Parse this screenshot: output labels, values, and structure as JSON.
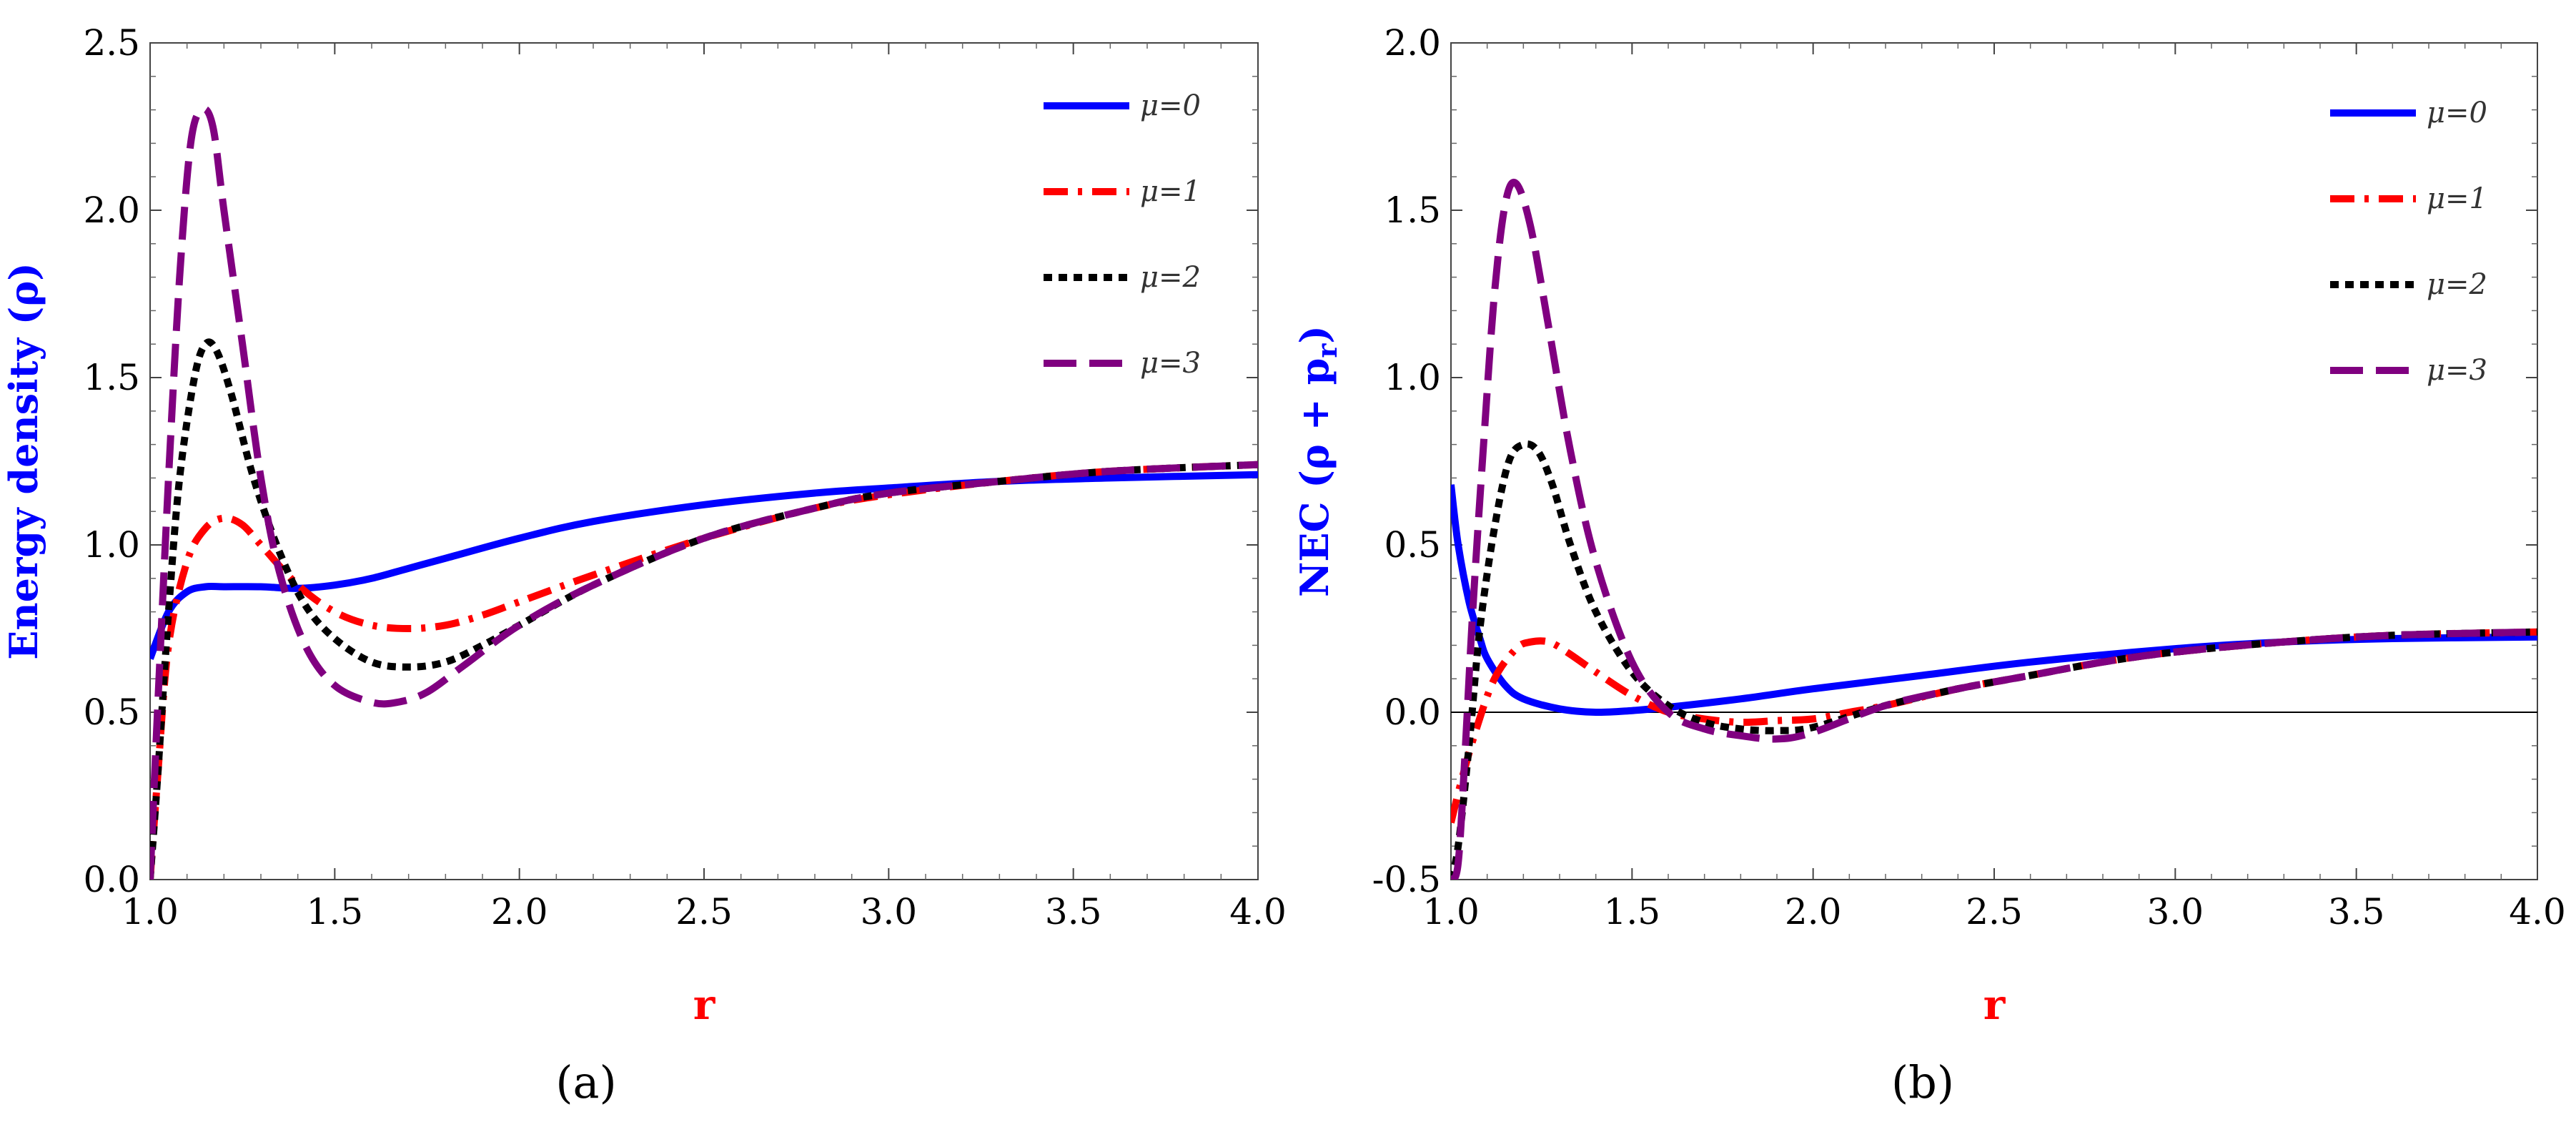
{
  "chart_data": [
    {
      "type": "line",
      "panel_label": "(a)",
      "xlabel": "r",
      "ylabel": "Energy density (ρ)",
      "xlim": [
        1.0,
        4.0
      ],
      "ylim": [
        0.0,
        2.5
      ],
      "x_ticks": [
        "1.0",
        "1.5",
        "2.0",
        "2.5",
        "3.0",
        "3.5",
        "4.0"
      ],
      "y_ticks": [
        "0.0",
        "0.5",
        "1.0",
        "1.5",
        "2.0",
        "2.5"
      ],
      "zero_line": false,
      "legend_position": "top-right",
      "series": [
        {
          "name": "μ=0",
          "color": "#0000ff",
          "style": "solid",
          "x": [
            1.0,
            1.05,
            1.1,
            1.15,
            1.2,
            1.3,
            1.4,
            1.5,
            1.6,
            1.7,
            1.8,
            2.0,
            2.2,
            2.5,
            2.8,
            3.0,
            3.3,
            3.6,
            4.0
          ],
          "y": [
            0.66,
            0.8,
            0.86,
            0.875,
            0.875,
            0.875,
            0.87,
            0.88,
            0.9,
            0.93,
            0.96,
            1.02,
            1.07,
            1.12,
            1.155,
            1.17,
            1.19,
            1.2,
            1.21
          ]
        },
        {
          "name": "μ=1",
          "color": "#ff0000",
          "style": "dashdot",
          "x": [
            1.0,
            1.02,
            1.05,
            1.1,
            1.15,
            1.2,
            1.25,
            1.3,
            1.4,
            1.5,
            1.6,
            1.7,
            1.8,
            1.9,
            2.0,
            2.2,
            2.5,
            2.8,
            3.0,
            3.3,
            3.6,
            4.0
          ],
          "y": [
            0.0,
            0.3,
            0.7,
            0.95,
            1.05,
            1.08,
            1.06,
            1.0,
            0.88,
            0.8,
            0.76,
            0.75,
            0.76,
            0.79,
            0.83,
            0.91,
            1.02,
            1.11,
            1.15,
            1.19,
            1.22,
            1.24
          ]
        },
        {
          "name": "μ=2",
          "color": "#000000",
          "style": "dotted",
          "x": [
            1.0,
            1.02,
            1.05,
            1.08,
            1.12,
            1.15,
            1.18,
            1.22,
            1.28,
            1.35,
            1.42,
            1.5,
            1.6,
            1.7,
            1.8,
            1.9,
            2.0,
            2.2,
            2.5,
            2.8,
            3.0,
            3.3,
            3.6,
            4.0
          ],
          "y": [
            0.0,
            0.3,
            0.8,
            1.2,
            1.5,
            1.6,
            1.58,
            1.45,
            1.2,
            0.98,
            0.82,
            0.72,
            0.65,
            0.635,
            0.65,
            0.7,
            0.76,
            0.88,
            1.02,
            1.11,
            1.155,
            1.19,
            1.22,
            1.24
          ]
        },
        {
          "name": "μ=3",
          "color": "#800080",
          "style": "dashed",
          "x": [
            1.0,
            1.02,
            1.05,
            1.08,
            1.11,
            1.14,
            1.17,
            1.2,
            1.25,
            1.3,
            1.35,
            1.42,
            1.5,
            1.6,
            1.67,
            1.75,
            1.85,
            2.0,
            2.2,
            2.5,
            2.8,
            3.0,
            3.3,
            3.6,
            4.0
          ],
          "y": [
            0.0,
            0.5,
            1.2,
            1.8,
            2.2,
            2.3,
            2.25,
            2.0,
            1.6,
            1.2,
            0.92,
            0.7,
            0.58,
            0.53,
            0.53,
            0.56,
            0.64,
            0.76,
            0.88,
            1.02,
            1.11,
            1.155,
            1.19,
            1.22,
            1.24
          ]
        }
      ]
    },
    {
      "type": "line",
      "panel_label": "(b)",
      "xlabel": "r",
      "ylabel": "NEC (ρ + p",
      "ylabel_sub": "r",
      "ylabel_close": ")",
      "xlim": [
        1.0,
        4.0
      ],
      "ylim": [
        -0.5,
        2.0
      ],
      "x_ticks": [
        "1.0",
        "1.5",
        "2.0",
        "2.5",
        "3.0",
        "3.5",
        "4.0"
      ],
      "y_ticks": [
        "-0.5",
        "0.0",
        "0.5",
        "1.0",
        "1.5",
        "2.0"
      ],
      "zero_line": true,
      "legend_position": "top-right",
      "series": [
        {
          "name": "μ=0",
          "color": "#0000ff",
          "style": "solid",
          "x": [
            1.0,
            1.02,
            1.05,
            1.08,
            1.1,
            1.15,
            1.2,
            1.3,
            1.4,
            1.5,
            1.6,
            1.8,
            2.0,
            2.3,
            2.6,
            3.0,
            3.3,
            3.6,
            4.0
          ],
          "y": [
            0.68,
            0.5,
            0.33,
            0.22,
            0.16,
            0.08,
            0.04,
            0.01,
            0.0,
            0.005,
            0.015,
            0.04,
            0.07,
            0.11,
            0.15,
            0.19,
            0.21,
            0.22,
            0.225
          ]
        },
        {
          "name": "μ=1",
          "color": "#ff0000",
          "style": "dashdot",
          "x": [
            1.0,
            1.03,
            1.07,
            1.12,
            1.18,
            1.22,
            1.27,
            1.32,
            1.4,
            1.5,
            1.6,
            1.7,
            1.8,
            1.9,
            2.0,
            2.1,
            2.2,
            2.4,
            2.6,
            2.8,
            3.0,
            3.3,
            3.6,
            4.0
          ],
          "y": [
            -0.33,
            -0.2,
            -0.05,
            0.1,
            0.19,
            0.21,
            0.21,
            0.18,
            0.12,
            0.05,
            0.0,
            -0.02,
            -0.03,
            -0.025,
            -0.02,
            0.0,
            0.02,
            0.07,
            0.11,
            0.15,
            0.18,
            0.21,
            0.23,
            0.24
          ]
        },
        {
          "name": "μ=2",
          "color": "#000000",
          "style": "dotted",
          "x": [
            1.0,
            1.02,
            1.05,
            1.08,
            1.12,
            1.16,
            1.2,
            1.24,
            1.28,
            1.33,
            1.4,
            1.5,
            1.6,
            1.7,
            1.8,
            1.9,
            2.0,
            2.2,
            2.4,
            2.6,
            2.8,
            3.0,
            3.3,
            3.6,
            4.0
          ],
          "y": [
            -0.5,
            -0.4,
            -0.1,
            0.25,
            0.55,
            0.75,
            0.8,
            0.78,
            0.68,
            0.5,
            0.3,
            0.12,
            0.02,
            -0.03,
            -0.05,
            -0.055,
            -0.045,
            0.02,
            0.07,
            0.11,
            0.15,
            0.18,
            0.21,
            0.23,
            0.24
          ]
        },
        {
          "name": "μ=3",
          "color": "#800080",
          "style": "dashed",
          "x": [
            1.0,
            1.02,
            1.04,
            1.06,
            1.09,
            1.12,
            1.15,
            1.18,
            1.22,
            1.27,
            1.33,
            1.4,
            1.5,
            1.6,
            1.7,
            1.8,
            1.9,
            2.0,
            2.2,
            2.4,
            2.6,
            2.8,
            3.0,
            3.3,
            3.6,
            4.0
          ],
          "y": [
            -0.5,
            -0.45,
            -0.1,
            0.3,
            0.8,
            1.25,
            1.52,
            1.58,
            1.45,
            1.15,
            0.78,
            0.45,
            0.15,
            0.0,
            -0.05,
            -0.07,
            -0.08,
            -0.06,
            0.02,
            0.07,
            0.11,
            0.15,
            0.18,
            0.21,
            0.23,
            0.24
          ]
        }
      ]
    }
  ]
}
